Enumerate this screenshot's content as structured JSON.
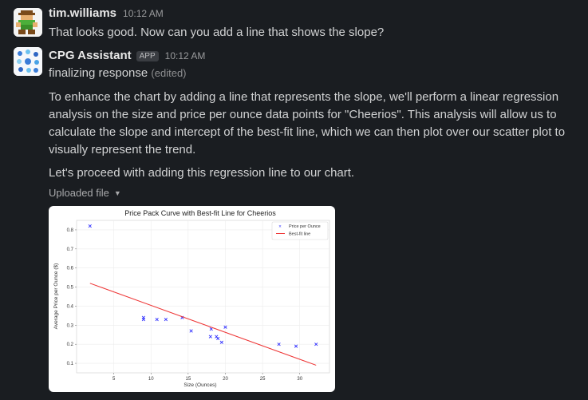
{
  "messages": [
    {
      "author": "tim.williams",
      "time": "10:12 AM",
      "text": "That looks good. Now can you add a line that shows the slope?"
    },
    {
      "author": "CPG Assistant",
      "badge": "APP",
      "time": "10:12 AM",
      "status": "finalizing response",
      "edited": "(edited)",
      "paragraphs": [
        "To enhance the chart by adding a line that represents the slope, we'll perform a linear regression analysis on the size and price per ounce data points for \"Cheerios\". This analysis will allow us to calculate the slope and intercept of the best-fit line, which we can then plot over our scatter plot to visually represent the trend.",
        "Let's proceed with adding this regression line to our chart."
      ],
      "attachment_label": "Uploaded file"
    }
  ],
  "chart_data": {
    "type": "scatter",
    "title": "Price Pack Curve with Best-fit Line for Cheerios",
    "xlabel": "Size (Ounces)",
    "ylabel": "Average Price per Ounce ($)",
    "xlim": [
      0,
      34
    ],
    "ylim": [
      0.05,
      0.85
    ],
    "xticks": [
      5,
      10,
      15,
      20,
      25,
      30
    ],
    "yticks": [
      0.1,
      0.2,
      0.3,
      0.4,
      0.5,
      0.6,
      0.7,
      0.8
    ],
    "grid": true,
    "legend_position": "top-right",
    "series": [
      {
        "name": "Price per Ounce",
        "marker": "x",
        "color": "#3333ff",
        "points": [
          [
            1.8,
            0.82
          ],
          [
            9.0,
            0.34
          ],
          [
            9.0,
            0.33
          ],
          [
            10.8,
            0.33
          ],
          [
            12.0,
            0.33
          ],
          [
            14.2,
            0.34
          ],
          [
            15.4,
            0.27
          ],
          [
            18.0,
            0.24
          ],
          [
            18.1,
            0.28
          ],
          [
            18.8,
            0.24
          ],
          [
            19.0,
            0.23
          ],
          [
            19.5,
            0.21
          ],
          [
            20.0,
            0.29
          ],
          [
            27.2,
            0.2
          ],
          [
            29.5,
            0.19
          ],
          [
            32.2,
            0.2
          ]
        ]
      },
      {
        "name": "Best-fit line",
        "type": "line",
        "color": "#ee3333",
        "points": [
          [
            1.8,
            0.52
          ],
          [
            32.2,
            0.09
          ]
        ]
      }
    ]
  }
}
